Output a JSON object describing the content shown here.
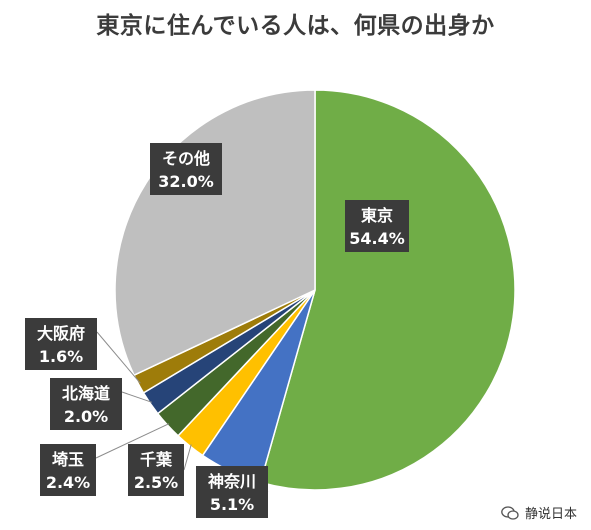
{
  "chart_data": {
    "type": "pie",
    "title": "東京に住んでいる人は、何県の出身か",
    "slices": [
      {
        "label": "東京",
        "value": 54.4,
        "value_label": "54.4%",
        "color": "#70ad47"
      },
      {
        "label": "神奈川",
        "value": 5.1,
        "value_label": "5.1%",
        "color": "#4472c4"
      },
      {
        "label": "千葉",
        "value": 2.5,
        "value_label": "2.5%",
        "color": "#ffc000"
      },
      {
        "label": "埼玉",
        "value": 2.4,
        "value_label": "2.4%",
        "color": "#43682b"
      },
      {
        "label": "北海道",
        "value": 2.0,
        "value_label": "2.0%",
        "color": "#264478"
      },
      {
        "label": "大阪府",
        "value": 1.6,
        "value_label": "1.6%",
        "color": "#9e7c0a"
      },
      {
        "label": "その他",
        "value": 32.0,
        "value_label": "32.0%",
        "color": "#bfbfbf"
      }
    ]
  },
  "watermark": {
    "text": "静说日本",
    "icon": "wechat-icon"
  }
}
